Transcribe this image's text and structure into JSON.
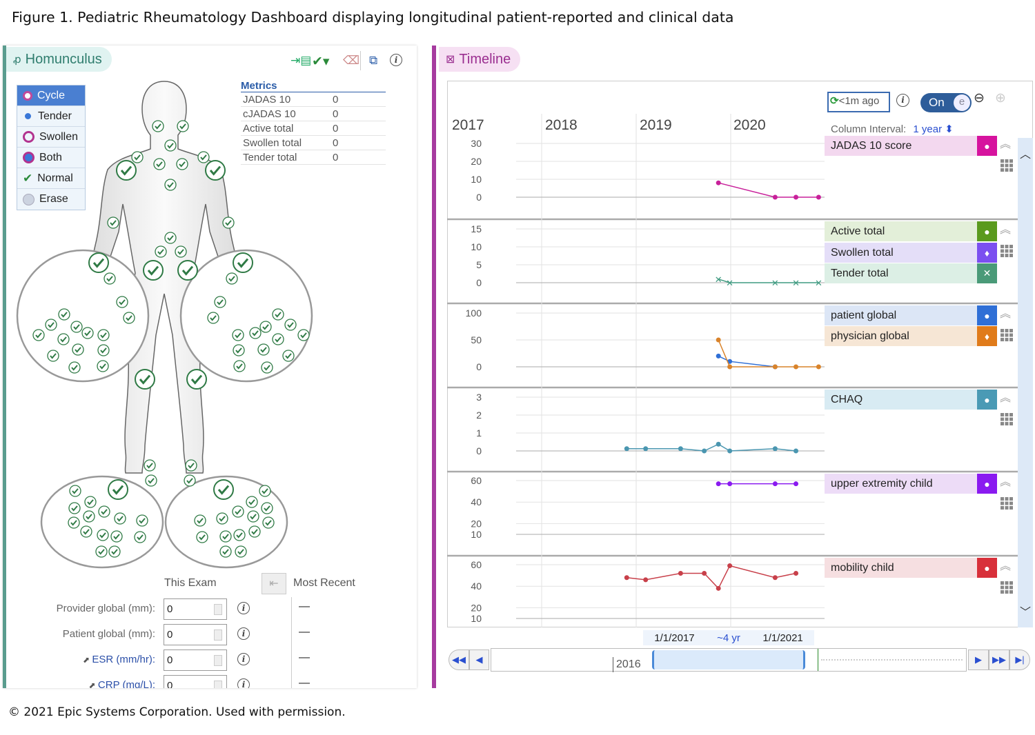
{
  "caption": "Figure 1. Pediatric Rheumatology Dashboard displaying longitudinal patient-reported and clinical data",
  "copyright": "© 2021 Epic Systems Corporation. Used with permission.",
  "homunculus": {
    "title": "Homunculus",
    "modes": [
      {
        "label": "Cycle"
      },
      {
        "label": "Tender"
      },
      {
        "label": "Swollen"
      },
      {
        "label": "Both"
      },
      {
        "label": "Normal"
      },
      {
        "label": "Erase"
      }
    ],
    "metrics": {
      "title": "Metrics",
      "rows": [
        {
          "label": "JADAS 10",
          "value": "0"
        },
        {
          "label": "cJADAS 10",
          "value": "0"
        },
        {
          "label": "Active total",
          "value": "0"
        },
        {
          "label": "Swollen total",
          "value": "0"
        },
        {
          "label": "Tender total",
          "value": "0"
        }
      ]
    },
    "this_exam": "This Exam",
    "most_recent": "Most Recent",
    "fields": [
      {
        "label": "Provider global (mm):",
        "value": "0",
        "recent": "—"
      },
      {
        "label": "Patient global (mm):",
        "value": "0",
        "recent": "—"
      },
      {
        "label": "ESR (mm/hr):",
        "value": "0",
        "recent": "—"
      },
      {
        "label": "CRP (mg/L):",
        "value": "0",
        "recent": "—"
      }
    ]
  },
  "timeline": {
    "title": "Timeline",
    "refresh": "<1m ago",
    "toggle": "On",
    "column_interval_label": "Column Interval:",
    "column_interval_value": "1 year",
    "years": [
      "2017",
      "2018",
      "2019",
      "2020"
    ],
    "range_start": "1/1/2017",
    "range_span": "~4 yr",
    "range_end": "1/1/2021",
    "scroller_year": "2016",
    "legend": [
      {
        "label": "JADAS 10 score",
        "bg": "#f3d8ef",
        "color": "#d6139e",
        "marker": "●"
      },
      {
        "label": "Active total",
        "bg": "#e3efd9",
        "color": "#5a9a1e",
        "marker": "●"
      },
      {
        "label": "Swollen total",
        "bg": "#e4def8",
        "color": "#7b4ff0",
        "marker": "♦"
      },
      {
        "label": "Tender total",
        "bg": "#dcefe5",
        "color": "#4a9a78",
        "marker": "✕"
      },
      {
        "label": "patient global",
        "bg": "#dce6f6",
        "color": "#2f6fd6",
        "marker": "●"
      },
      {
        "label": "physician global",
        "bg": "#f6e6d5",
        "color": "#e07b1a",
        "marker": "♦"
      },
      {
        "label": "CHAQ",
        "bg": "#d8ebf3",
        "color": "#4a9ab5",
        "marker": "●"
      },
      {
        "label": "upper extremity child",
        "bg": "#eddcf7",
        "color": "#8a1af0",
        "marker": "●"
      },
      {
        "label": "mobility child",
        "bg": "#f6dfe1",
        "color": "#d8303a",
        "marker": "●"
      }
    ]
  },
  "chart_data": {
    "type": "line",
    "x_unit": "year",
    "xlim": [
      2017,
      2021
    ],
    "panels": [
      {
        "ticks": [
          0,
          10,
          20,
          30
        ],
        "series": [
          {
            "name": "JADAS 10 score",
            "color": "#c8209a",
            "points": [
              [
                2019.87,
                8
              ],
              [
                2020.47,
                0
              ],
              [
                2020.69,
                0
              ],
              [
                2020.93,
                0
              ]
            ]
          }
        ]
      },
      {
        "ticks": [
          0,
          5,
          10,
          15
        ],
        "series": [
          {
            "name": "Tender total",
            "color": "#3f9a80",
            "marker": "x",
            "points": [
              [
                2019.87,
                1
              ],
              [
                2019.99,
                0
              ],
              [
                2020.47,
                0
              ],
              [
                2020.69,
                0
              ],
              [
                2020.93,
                0
              ]
            ]
          }
        ]
      },
      {
        "ticks": [
          0,
          50,
          100
        ],
        "series": [
          {
            "name": "patient global",
            "color": "#2f6fd6",
            "points": [
              [
                2019.87,
                20
              ],
              [
                2019.99,
                10
              ],
              [
                2020.47,
                0
              ]
            ]
          },
          {
            "name": "physician global",
            "color": "#d9832a",
            "points": [
              [
                2019.87,
                50
              ],
              [
                2019.99,
                0
              ],
              [
                2020.47,
                0
              ],
              [
                2020.69,
                0
              ],
              [
                2020.93,
                0
              ]
            ]
          }
        ]
      },
      {
        "ticks": [
          0,
          1,
          2,
          3
        ],
        "series": [
          {
            "name": "CHAQ",
            "color": "#4a96b0",
            "points": [
              [
                2018.9,
                0.125
              ],
              [
                2019.1,
                0.125
              ],
              [
                2019.47,
                0.125
              ],
              [
                2019.72,
                0
              ],
              [
                2019.87,
                0.375
              ],
              [
                2019.99,
                0
              ],
              [
                2020.47,
                0.125
              ],
              [
                2020.69,
                0
              ]
            ]
          }
        ]
      },
      {
        "ticks": [
          10,
          20,
          40,
          60
        ],
        "series": [
          {
            "name": "upper extremity child",
            "color": "#8a1af0",
            "points": [
              [
                2019.87,
                57
              ],
              [
                2019.99,
                57
              ],
              [
                2020.47,
                57
              ],
              [
                2020.69,
                57
              ]
            ]
          }
        ]
      },
      {
        "ticks": [
          10,
          20,
          40,
          60
        ],
        "series": [
          {
            "name": "mobility child",
            "color": "#c8404a",
            "points": [
              [
                2018.9,
                48
              ],
              [
                2019.1,
                46
              ],
              [
                2019.47,
                52
              ],
              [
                2019.72,
                52
              ],
              [
                2019.87,
                38
              ],
              [
                2019.99,
                59
              ],
              [
                2020.47,
                48
              ],
              [
                2020.69,
                52
              ]
            ]
          }
        ]
      }
    ]
  }
}
